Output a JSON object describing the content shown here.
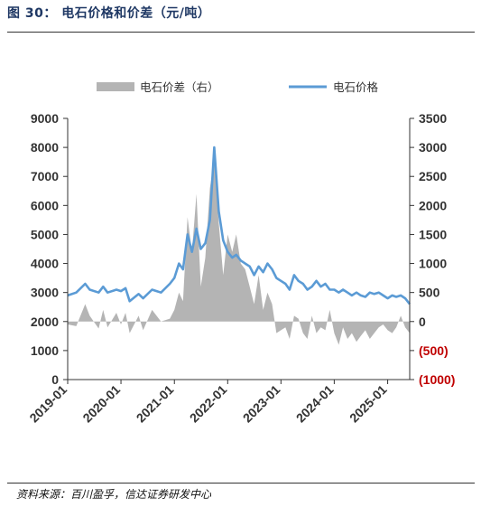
{
  "figure": {
    "title": "图 30：  电石价格和价差（元/吨）",
    "source": "资料来源：百川盈孚，信达证券研发中心"
  },
  "colors": {
    "price_line": "#5b9bd5",
    "spread_bar": "#b4b4b4",
    "negative_label": "#c00000",
    "title": "#1f3864"
  },
  "chart_data": {
    "type": "line",
    "legend": [
      "电石价差（右）",
      "电石价格"
    ],
    "legend_position": "top",
    "grid": false,
    "x_ticks": [
      "2019-01",
      "2020-01",
      "2021-01",
      "2022-01",
      "2023-01",
      "2024-01",
      "2025-01"
    ],
    "x_range": [
      "2019-01-01",
      "2025-06-01"
    ],
    "y_left": {
      "min": 0,
      "max": 9000,
      "ticks": [
        "0",
        "1000",
        "2000",
        "3000",
        "4000",
        "5000",
        "6000",
        "7000",
        "8000",
        "9000"
      ]
    },
    "y_right": {
      "min": -1000,
      "max": 3500,
      "ticks": [
        "(1000)",
        "(500)",
        "0",
        "500",
        "1000",
        "1500",
        "2000",
        "2500",
        "3000",
        "3500"
      ]
    },
    "series": [
      {
        "name": "电石价差（右）",
        "type": "area",
        "axis": "right",
        "x": [
          "2019-01-01",
          "2019-03-01",
          "2019-05-01",
          "2019-06-01",
          "2019-08-01",
          "2019-09-01",
          "2019-10-01",
          "2019-12-01",
          "2020-01-01",
          "2020-02-01",
          "2020-03-01",
          "2020-05-01",
          "2020-06-01",
          "2020-08-01",
          "2020-09-01",
          "2020-10-01",
          "2020-12-01",
          "2021-01-01",
          "2021-02-01",
          "2021-03-01",
          "2021-04-01",
          "2021-05-01",
          "2021-06-01",
          "2021-07-01",
          "2021-08-01",
          "2021-09-01",
          "2021-10-01",
          "2021-11-01",
          "2021-12-01",
          "2022-01-01",
          "2022-02-01",
          "2022-03-01",
          "2022-04-01",
          "2022-05-01",
          "2022-06-01",
          "2022-07-01",
          "2022-08-01",
          "2022-09-01",
          "2022-10-01",
          "2022-11-01",
          "2022-12-01",
          "2023-01-01",
          "2023-02-01",
          "2023-03-01",
          "2023-04-01",
          "2023-05-01",
          "2023-06-01",
          "2023-07-01",
          "2023-08-01",
          "2023-09-01",
          "2023-10-01",
          "2023-11-01",
          "2023-12-01",
          "2024-01-01",
          "2024-02-01",
          "2024-03-01",
          "2024-04-01",
          "2024-05-01",
          "2024-06-01",
          "2024-07-01",
          "2024-08-01",
          "2024-09-01",
          "2024-10-01",
          "2024-11-01",
          "2024-12-01",
          "2025-01-01",
          "2025-02-01",
          "2025-03-01",
          "2025-04-01",
          "2025-05-01",
          "2025-06-01"
        ],
        "values": [
          -50,
          -80,
          300,
          100,
          -120,
          200,
          -100,
          150,
          -50,
          150,
          -200,
          100,
          -150,
          200,
          100,
          0,
          50,
          200,
          500,
          350,
          1800,
          1200,
          2200,
          600,
          1100,
          2300,
          2800,
          1700,
          800,
          1500,
          1200,
          1500,
          1000,
          900,
          600,
          300,
          800,
          200,
          500,
          300,
          -200,
          -150,
          -100,
          -300,
          100,
          50,
          -200,
          -300,
          100,
          -200,
          -100,
          -150,
          200,
          -200,
          -400,
          -100,
          -300,
          -200,
          -350,
          -250,
          -150,
          -300,
          -200,
          -100,
          -50,
          -150,
          -200,
          -100,
          100,
          -100,
          -200
        ]
      },
      {
        "name": "电石价格",
        "type": "line",
        "axis": "left",
        "x": [
          "2019-01-01",
          "2019-03-01",
          "2019-05-01",
          "2019-06-01",
          "2019-08-01",
          "2019-09-01",
          "2019-10-01",
          "2019-12-01",
          "2020-01-01",
          "2020-02-01",
          "2020-03-01",
          "2020-05-01",
          "2020-06-01",
          "2020-08-01",
          "2020-09-01",
          "2020-10-01",
          "2020-12-01",
          "2021-01-01",
          "2021-02-01",
          "2021-03-01",
          "2021-04-01",
          "2021-05-01",
          "2021-06-01",
          "2021-07-01",
          "2021-08-01",
          "2021-09-01",
          "2021-10-01",
          "2021-11-01",
          "2021-12-01",
          "2022-01-01",
          "2022-02-01",
          "2022-03-01",
          "2022-04-01",
          "2022-05-01",
          "2022-06-01",
          "2022-07-01",
          "2022-08-01",
          "2022-09-01",
          "2022-10-01",
          "2022-11-01",
          "2022-12-01",
          "2023-01-01",
          "2023-02-01",
          "2023-03-01",
          "2023-04-01",
          "2023-05-01",
          "2023-06-01",
          "2023-07-01",
          "2023-08-01",
          "2023-09-01",
          "2023-10-01",
          "2023-11-01",
          "2023-12-01",
          "2024-01-01",
          "2024-02-01",
          "2024-03-01",
          "2024-04-01",
          "2024-05-01",
          "2024-06-01",
          "2024-07-01",
          "2024-08-01",
          "2024-09-01",
          "2024-10-01",
          "2024-11-01",
          "2024-12-01",
          "2025-01-01",
          "2025-02-01",
          "2025-03-01",
          "2025-04-01",
          "2025-05-01",
          "2025-06-01"
        ],
        "values": [
          2900,
          3000,
          3300,
          3100,
          3000,
          3200,
          3000,
          3100,
          3050,
          3150,
          2700,
          2950,
          2800,
          3100,
          3050,
          3000,
          3300,
          3500,
          4000,
          3800,
          5000,
          4400,
          5200,
          4500,
          4700,
          5500,
          8000,
          5800,
          4800,
          4400,
          4200,
          4300,
          4100,
          4000,
          3900,
          3600,
          3900,
          3700,
          4000,
          3800,
          3500,
          3400,
          3300,
          3100,
          3600,
          3400,
          3300,
          3100,
          3200,
          3400,
          3200,
          3300,
          3100,
          3100,
          3000,
          3100,
          3000,
          2900,
          3000,
          2900,
          2850,
          3000,
          2950,
          3000,
          2900,
          2800,
          2900,
          2850,
          2900,
          2800,
          2600
        ]
      }
    ]
  }
}
